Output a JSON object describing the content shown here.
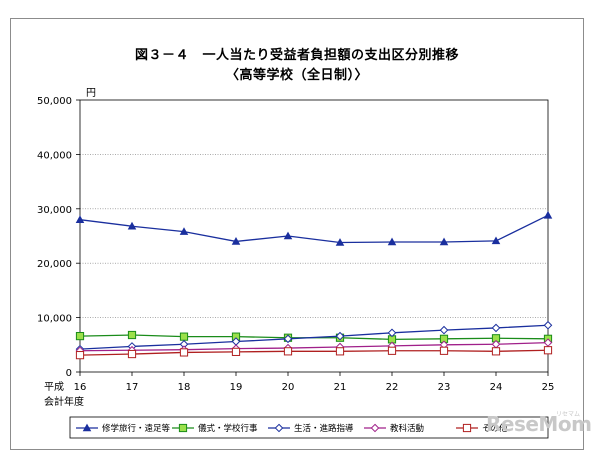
{
  "title_line1": "図３－４　一人当たり受益者負担額の支出区分別推移",
  "title_line2": "〈高等学校（全日制）〉",
  "watermark": "ReseMom",
  "watermark_sub": "リセマム",
  "chart_data": {
    "type": "line",
    "title": "図３－４　一人当たり受益者負担額の支出区分別推移 〈高等学校（全日制）〉",
    "ylabel": "円",
    "xlabel_line1": "平成",
    "xlabel_line2": "会計年度",
    "ylim": [
      0,
      50000
    ],
    "yticks": [
      "0",
      "10,000",
      "20,000",
      "30,000",
      "40,000",
      "50,000"
    ],
    "ytick_values": [
      0,
      10000,
      20000,
      30000,
      40000,
      50000
    ],
    "grid": true,
    "legend_position": "bottom",
    "categories": [
      "16",
      "17",
      "18",
      "19",
      "20",
      "21",
      "22",
      "23",
      "24",
      "25"
    ],
    "series": [
      {
        "name": "修学旅行・遠足等",
        "color": "#1a2f9e",
        "marker": "triangle-filled",
        "values": [
          28000,
          26800,
          25800,
          24000,
          25000,
          23800,
          23900,
          23900,
          24100,
          28800
        ]
      },
      {
        "name": "儀式・学校行事",
        "color": "#1a8c1a",
        "marker": "square-filled-green",
        "values": [
          6600,
          6800,
          6500,
          6500,
          6300,
          6300,
          6000,
          6100,
          6200,
          6100
        ]
      },
      {
        "name": "生活・進路指導",
        "color": "#1a2f9e",
        "marker": "diamond-open",
        "values": [
          4200,
          4700,
          5100,
          5600,
          6100,
          6600,
          7200,
          7700,
          8100,
          8600
        ]
      },
      {
        "name": "教科活動",
        "color": "#a0208a",
        "marker": "diamond-open-magenta",
        "values": [
          3900,
          4000,
          4100,
          4300,
          4400,
          4600,
          4800,
          5000,
          5100,
          5400
        ]
      },
      {
        "name": "その他",
        "color": "#b02020",
        "marker": "square-open-red",
        "values": [
          3100,
          3300,
          3600,
          3700,
          3800,
          3800,
          3900,
          3900,
          3800,
          4000
        ]
      }
    ]
  }
}
